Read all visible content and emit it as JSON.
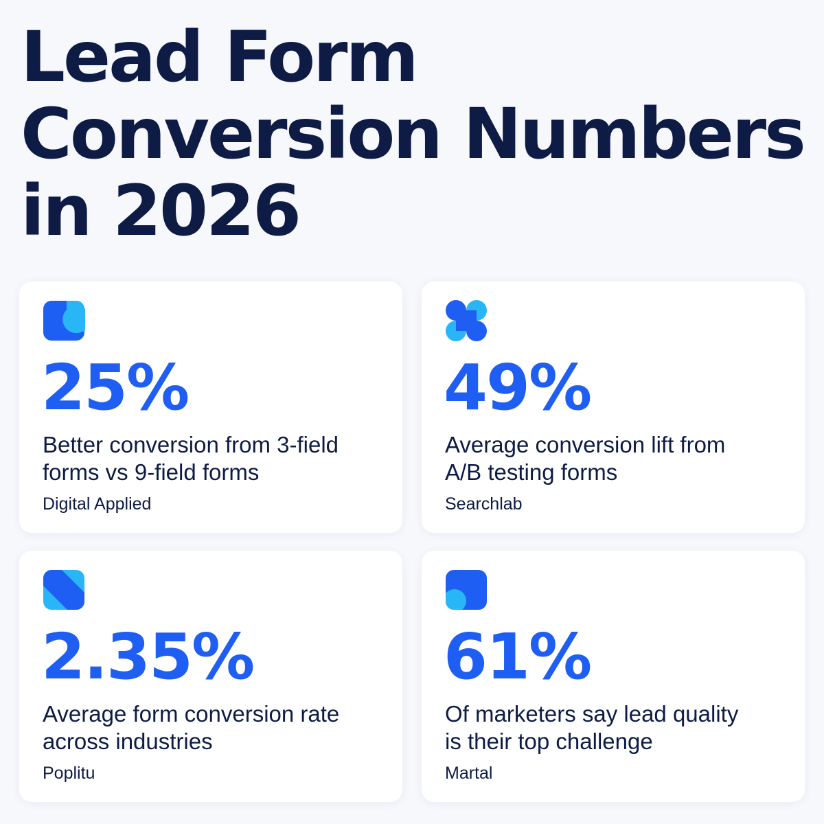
{
  "title": {
    "line1": "Lead Form",
    "line2": "Conversion Numbers",
    "line3": "in 2026"
  },
  "colors": {
    "title": "#0d1b45",
    "stat": "#1f5ef2",
    "icon_dark": "#1f5ef2",
    "icon_light": "#29b6f6",
    "background": "#f6f8fc",
    "card": "#ffffff"
  },
  "cards": [
    {
      "icon": "rounded-square-circle-icon",
      "stat": "25%",
      "desc_line1": "Better conversion from 3-field",
      "desc_line2": "forms vs 9-field forms",
      "source": "Digital Applied"
    },
    {
      "icon": "four-petal-icon",
      "stat": "49%",
      "desc_line1": "Average conversion lift from",
      "desc_line2": "A/B testing forms",
      "source": "Searchlab"
    },
    {
      "icon": "diagonal-stripe-icon",
      "stat": "2.35%",
      "desc_line1": "Average form conversion rate",
      "desc_line2": "across industries",
      "source": "Poplitu"
    },
    {
      "icon": "square-quarter-circle-icon",
      "stat": "61%",
      "desc_line1": "Of marketers say lead quality",
      "desc_line2": "is their top challenge",
      "source": "Martal"
    }
  ]
}
